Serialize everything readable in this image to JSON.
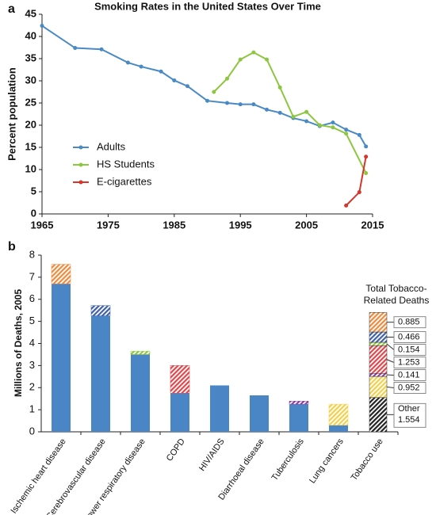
{
  "chart_data": [
    {
      "type": "line",
      "panel_label": "a",
      "title": "Smoking Rates in the United States Over Time",
      "ylabel": "Percent population",
      "xlim": [
        1965,
        2015
      ],
      "xticks": [
        1965,
        1975,
        1985,
        1995,
        2005,
        2015
      ],
      "ylim": [
        0,
        45
      ],
      "yticks": [
        0,
        5,
        10,
        15,
        20,
        25,
        30,
        35,
        40,
        45
      ],
      "grid": false,
      "legend": "lower-left",
      "series": [
        {
          "name": "Adults",
          "color": "#4a8ac4",
          "x": [
            1965,
            1970,
            1974,
            1978,
            1980,
            1983,
            1985,
            1987,
            1990,
            1993,
            1995,
            1997,
            1999,
            2001,
            2003,
            2005,
            2007,
            2009,
            2011,
            2013,
            2014
          ],
          "values": [
            42.4,
            37.4,
            37.1,
            34.1,
            33.2,
            32.1,
            30.1,
            28.8,
            25.5,
            25.0,
            24.7,
            24.7,
            23.5,
            22.8,
            21.6,
            20.9,
            19.8,
            20.6,
            19.0,
            17.8,
            15.2
          ]
        },
        {
          "name": "HS Students",
          "color": "#8dc63f",
          "x": [
            1991,
            1993,
            1995,
            1997,
            1999,
            2001,
            2003,
            2005,
            2007,
            2009,
            2011,
            2014
          ],
          "values": [
            27.5,
            30.5,
            34.8,
            36.4,
            34.8,
            28.5,
            21.9,
            23.0,
            20.0,
            19.5,
            18.1,
            9.2
          ]
        },
        {
          "name": "E-cigarettes",
          "color": "#d7352b",
          "x": [
            2011,
            2013,
            2014
          ],
          "values": [
            1.9,
            4.9,
            12.9
          ]
        }
      ]
    },
    {
      "type": "stacked_bar",
      "panel_label": "b",
      "ylabel": "Millions of Deaths, 2005",
      "ylim": [
        0,
        8
      ],
      "yticks": [
        0,
        1,
        2,
        3,
        4,
        5,
        6,
        7,
        8
      ],
      "categories": [
        "Ischemic heart disease",
        "Cerebrovascular disease",
        "Lower respiratory disease",
        "COPD",
        "HIV/AIDS",
        "Diarrhoeal disease",
        "Tuberculosis",
        "Lung cancers",
        "Tobacco use"
      ],
      "base": {
        "color": "#4a86c5",
        "values": [
          6.7,
          5.25,
          3.5,
          1.75,
          2.1,
          1.65,
          1.25,
          0.3,
          null
        ]
      },
      "tobacco": {
        "colors": [
          "#ef8a3c",
          "#3f5fa8",
          "#8dc63f",
          "#e0474c",
          null,
          null,
          "#8b3fa0",
          "#f2d04a",
          null
        ],
        "values": [
          0.885,
          0.466,
          0.154,
          1.253,
          null,
          null,
          0.141,
          0.952,
          null
        ]
      },
      "total": {
        "title": [
          "Total Tobacco-",
          "Related Deaths"
        ],
        "other_label": "Other",
        "values": [
          1.554,
          0.952,
          0.141,
          1.253,
          0.154,
          0.466,
          0.885
        ],
        "colors": [
          "#222222",
          "#f2d04a",
          "#8b3fa0",
          "#e0474c",
          "#8dc63f",
          "#3f5fa8",
          "#ef8a3c"
        ]
      }
    }
  ]
}
